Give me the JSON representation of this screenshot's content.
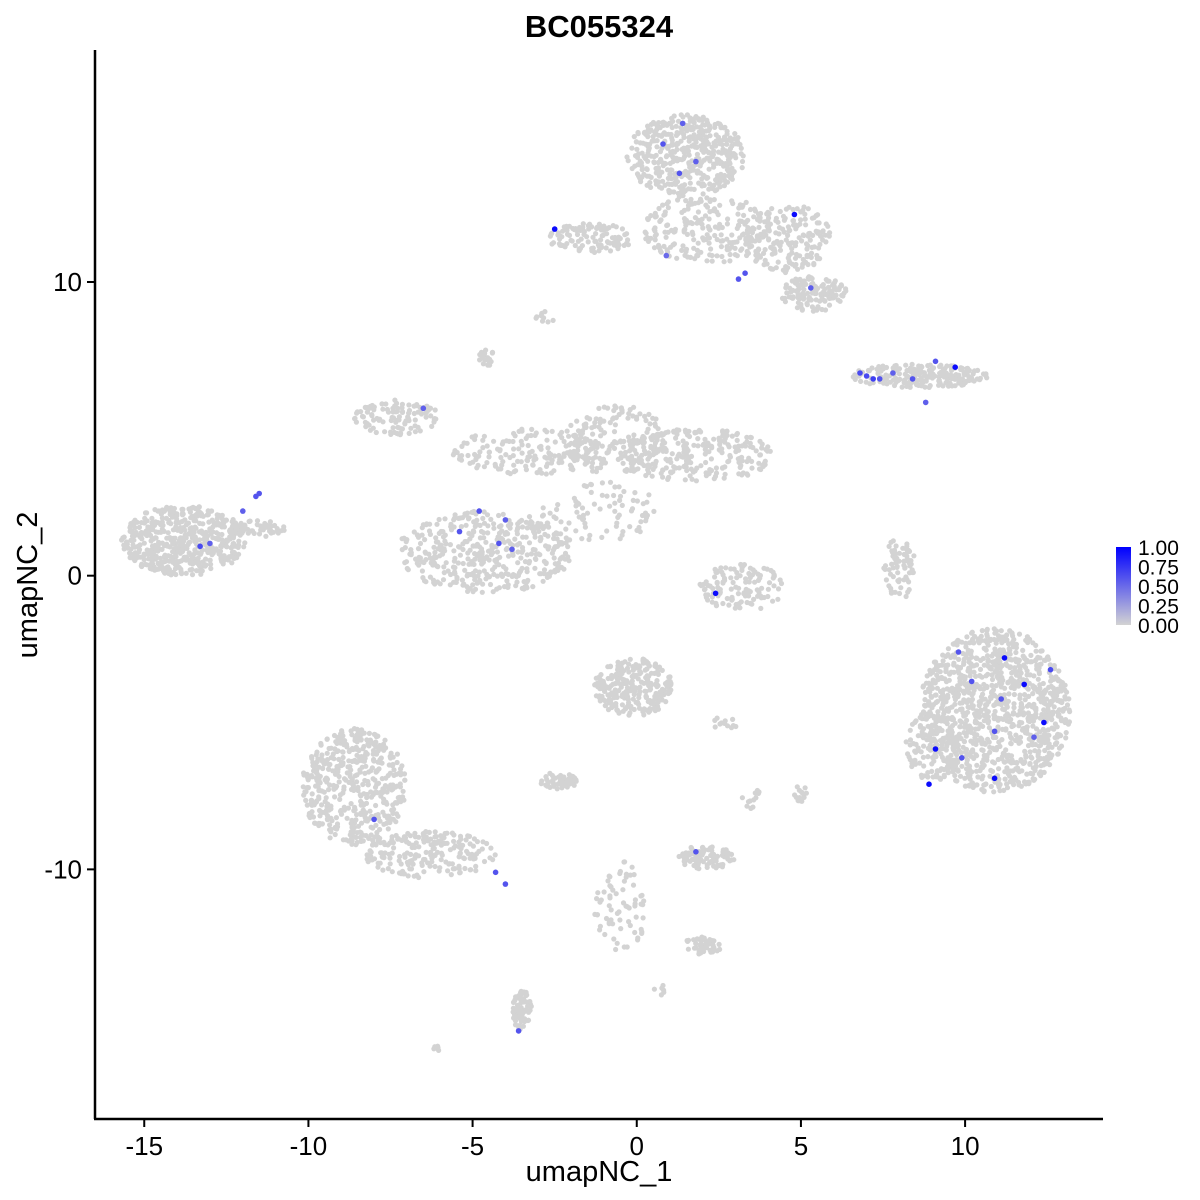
{
  "chart_data": {
    "type": "scatter",
    "title": "BC055324",
    "xlabel": "umapNC_1",
    "ylabel": "umapNC_2",
    "xlim": [
      -16.5,
      14.2
    ],
    "ylim": [
      -18.5,
      17.9
    ],
    "x_ticks": [
      -15,
      -10,
      -5,
      0,
      5,
      10
    ],
    "x_tick_labels": [
      "-15",
      "-10",
      "-5",
      "0",
      "5",
      "10"
    ],
    "y_ticks": [
      -10,
      0,
      10
    ],
    "y_tick_labels": [
      "-10",
      "0",
      "10"
    ],
    "grid": false,
    "legend": {
      "placement": "right",
      "labels": [
        "1.00",
        "0.75",
        "0.50",
        "0.25",
        "0.00"
      ],
      "values": [
        1.0,
        0.75,
        0.5,
        0.25,
        0.0
      ]
    },
    "colors": {
      "low": "#d3d3d3",
      "high": "#0000ff"
    },
    "background_clusters": [
      {
        "cx": -13.8,
        "cy": 1.2,
        "rx": 1.9,
        "ry": 1.2,
        "n": 520
      },
      {
        "cx": -11.6,
        "cy": 1.6,
        "rx": 0.9,
        "ry": 0.3,
        "n": 50
      },
      {
        "cx": -4.6,
        "cy": 0.8,
        "rx": 2.7,
        "ry": 1.4,
        "n": 420
      },
      {
        "cx": -7.3,
        "cy": 5.4,
        "rx": 1.3,
        "ry": 0.6,
        "n": 110
      },
      {
        "cx": -3.4,
        "cy": 4.2,
        "rx": 2.2,
        "ry": 0.8,
        "n": 160
      },
      {
        "cx": -0.6,
        "cy": 4.6,
        "rx": 1.6,
        "ry": 1.2,
        "n": 180
      },
      {
        "cx": 1.8,
        "cy": 4.1,
        "rx": 2.4,
        "ry": 0.9,
        "n": 240
      },
      {
        "cx": -1.1,
        "cy": 2.2,
        "rx": 1.8,
        "ry": 1.0,
        "n": 80
      },
      {
        "cx": -4.6,
        "cy": 7.4,
        "rx": 0.3,
        "ry": 0.3,
        "n": 20
      },
      {
        "cx": -2.8,
        "cy": 8.8,
        "rx": 0.3,
        "ry": 0.2,
        "n": 10
      },
      {
        "cx": 1.5,
        "cy": 14.3,
        "rx": 1.8,
        "ry": 1.4,
        "n": 460
      },
      {
        "cx": 2.1,
        "cy": 11.8,
        "rx": 1.9,
        "ry": 1.2,
        "n": 220
      },
      {
        "cx": 4.6,
        "cy": 11.5,
        "rx": 1.3,
        "ry": 1.2,
        "n": 180
      },
      {
        "cx": 5.4,
        "cy": 9.6,
        "rx": 1.0,
        "ry": 0.6,
        "n": 140
      },
      {
        "cx": -1.4,
        "cy": 11.5,
        "rx": 1.3,
        "ry": 0.5,
        "n": 110
      },
      {
        "cx": 8.6,
        "cy": 6.8,
        "rx": 2.1,
        "ry": 0.4,
        "n": 200
      },
      {
        "cx": 3.2,
        "cy": -0.4,
        "rx": 1.3,
        "ry": 0.8,
        "n": 120
      },
      {
        "cx": 8.0,
        "cy": 0.2,
        "rx": 0.5,
        "ry": 1.1,
        "n": 70
      },
      {
        "cx": 10.9,
        "cy": -4.6,
        "rx": 2.3,
        "ry": 2.8,
        "n": 1100
      },
      {
        "cx": 9.0,
        "cy": -5.8,
        "rx": 0.8,
        "ry": 1.2,
        "n": 120
      },
      {
        "cx": -0.1,
        "cy": -3.8,
        "rx": 1.2,
        "ry": 1.0,
        "n": 260
      },
      {
        "cx": -2.4,
        "cy": -7.0,
        "rx": 0.6,
        "ry": 0.3,
        "n": 50
      },
      {
        "cx": -8.6,
        "cy": -7.2,
        "rx": 1.6,
        "ry": 2.0,
        "n": 480
      },
      {
        "cx": -6.3,
        "cy": -9.5,
        "rx": 2.0,
        "ry": 0.8,
        "n": 200
      },
      {
        "cx": 2.1,
        "cy": -9.6,
        "rx": 0.9,
        "ry": 0.4,
        "n": 90
      },
      {
        "cx": -0.5,
        "cy": -11.3,
        "rx": 0.8,
        "ry": 1.6,
        "n": 70
      },
      {
        "cx": 2.0,
        "cy": -12.6,
        "rx": 0.6,
        "ry": 0.3,
        "n": 45
      },
      {
        "cx": -3.5,
        "cy": -14.8,
        "rx": 0.3,
        "ry": 0.7,
        "n": 70
      },
      {
        "cx": 2.7,
        "cy": -5.0,
        "rx": 0.5,
        "ry": 0.2,
        "n": 12
      },
      {
        "cx": 5.0,
        "cy": -7.4,
        "rx": 0.2,
        "ry": 0.3,
        "n": 14
      },
      {
        "cx": 3.5,
        "cy": -7.6,
        "rx": 0.3,
        "ry": 0.4,
        "n": 12
      },
      {
        "cx": -6.0,
        "cy": -16.1,
        "rx": 0.2,
        "ry": 0.1,
        "n": 6
      },
      {
        "cx": 0.7,
        "cy": -14.1,
        "rx": 0.2,
        "ry": 0.2,
        "n": 6
      }
    ],
    "expressing_points": [
      {
        "x": -11.6,
        "y": 2.7,
        "value": 0.6
      },
      {
        "x": -11.5,
        "y": 2.8,
        "value": 0.6
      },
      {
        "x": -12.0,
        "y": 2.2,
        "value": 0.55
      },
      {
        "x": -13.3,
        "y": 1.0,
        "value": 0.65
      },
      {
        "x": -13.0,
        "y": 1.1,
        "value": 0.55
      },
      {
        "x": -5.4,
        "y": 1.5,
        "value": 0.6
      },
      {
        "x": -4.8,
        "y": 2.2,
        "value": 0.6
      },
      {
        "x": -4.0,
        "y": 1.9,
        "value": 0.55
      },
      {
        "x": -4.2,
        "y": 1.1,
        "value": 0.6
      },
      {
        "x": -3.8,
        "y": 0.9,
        "value": 0.55
      },
      {
        "x": -6.5,
        "y": 5.7,
        "value": 0.55
      },
      {
        "x": 0.8,
        "y": 14.7,
        "value": 0.6
      },
      {
        "x": 1.4,
        "y": 15.4,
        "value": 0.55
      },
      {
        "x": 1.3,
        "y": 13.7,
        "value": 0.6
      },
      {
        "x": 1.8,
        "y": 14.1,
        "value": 0.55
      },
      {
        "x": -2.5,
        "y": 11.8,
        "value": 0.95
      },
      {
        "x": 0.9,
        "y": 10.9,
        "value": 0.5
      },
      {
        "x": 4.8,
        "y": 12.3,
        "value": 0.95
      },
      {
        "x": 3.1,
        "y": 10.1,
        "value": 0.6
      },
      {
        "x": 3.3,
        "y": 10.3,
        "value": 0.6
      },
      {
        "x": 5.3,
        "y": 9.8,
        "value": 0.55
      },
      {
        "x": 6.8,
        "y": 6.9,
        "value": 0.65
      },
      {
        "x": 7.0,
        "y": 6.8,
        "value": 0.65
      },
      {
        "x": 7.2,
        "y": 6.7,
        "value": 0.7
      },
      {
        "x": 7.4,
        "y": 6.7,
        "value": 0.6
      },
      {
        "x": 7.8,
        "y": 6.9,
        "value": 0.55
      },
      {
        "x": 8.4,
        "y": 6.7,
        "value": 0.6
      },
      {
        "x": 9.1,
        "y": 7.3,
        "value": 0.6
      },
      {
        "x": 9.7,
        "y": 7.1,
        "value": 0.95
      },
      {
        "x": 8.8,
        "y": 5.9,
        "value": 0.55
      },
      {
        "x": 2.4,
        "y": -0.6,
        "value": 0.95
      },
      {
        "x": 9.8,
        "y": -2.6,
        "value": 0.6
      },
      {
        "x": 11.2,
        "y": -2.8,
        "value": 0.95
      },
      {
        "x": 11.8,
        "y": -3.7,
        "value": 0.95
      },
      {
        "x": 12.6,
        "y": -3.2,
        "value": 0.65
      },
      {
        "x": 10.2,
        "y": -3.6,
        "value": 0.6
      },
      {
        "x": 11.1,
        "y": -4.2,
        "value": 0.6
      },
      {
        "x": 12.4,
        "y": -5.0,
        "value": 0.95
      },
      {
        "x": 10.9,
        "y": -5.3,
        "value": 0.6
      },
      {
        "x": 9.1,
        "y": -5.9,
        "value": 0.95
      },
      {
        "x": 9.9,
        "y": -6.2,
        "value": 0.6
      },
      {
        "x": 12.1,
        "y": -5.5,
        "value": 0.55
      },
      {
        "x": 8.9,
        "y": -7.1,
        "value": 0.95
      },
      {
        "x": 10.9,
        "y": -6.9,
        "value": 0.95
      },
      {
        "x": -8.0,
        "y": -8.3,
        "value": 0.6
      },
      {
        "x": -4.3,
        "y": -10.1,
        "value": 0.6
      },
      {
        "x": -4.0,
        "y": -10.5,
        "value": 0.6
      },
      {
        "x": 1.8,
        "y": -9.4,
        "value": 0.6
      },
      {
        "x": -3.6,
        "y": -15.5,
        "value": 0.6
      }
    ]
  }
}
